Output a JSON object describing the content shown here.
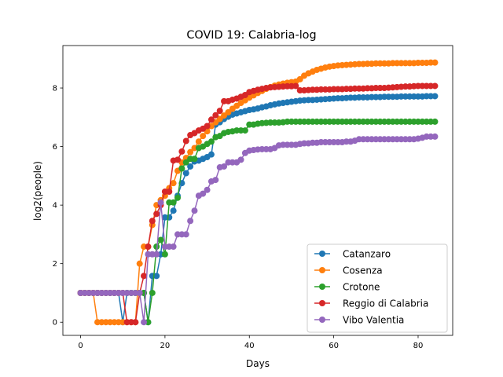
{
  "chart_data": {
    "type": "line",
    "title": "COVID 19: Calabria-log",
    "xlabel": "Days",
    "ylabel": "log2(people)",
    "xlim": [
      -4.2,
      88.2
    ],
    "ylim": [
      -0.45,
      9.45
    ],
    "xticks": [
      0,
      20,
      40,
      60,
      80
    ],
    "yticks": [
      0,
      2,
      4,
      6,
      8
    ],
    "grid": false,
    "legend_position": "lower-right",
    "series": [
      {
        "name": "Catanzaro",
        "color": "#1f77b4",
        "x": [
          0,
          1,
          2,
          3,
          4,
          5,
          6,
          7,
          8,
          9,
          10,
          11,
          12,
          13,
          14,
          15,
          16,
          17,
          18,
          19,
          20,
          21,
          22,
          23,
          24,
          25,
          26,
          27,
          28,
          29,
          30,
          31,
          32,
          33,
          34,
          35,
          36,
          37,
          38,
          39,
          40,
          41,
          42,
          43,
          44,
          45,
          46,
          47,
          48,
          49,
          50,
          51,
          52,
          53,
          54,
          55,
          56,
          57,
          58,
          59,
          60,
          61,
          62,
          63,
          64,
          65,
          66,
          67,
          68,
          69,
          70,
          71,
          72,
          73,
          74,
          75,
          76,
          77,
          78,
          79,
          80,
          81,
          82,
          83,
          84
        ],
        "y": [
          1,
          1,
          1,
          1,
          1,
          1,
          1,
          1,
          1,
          1,
          0,
          1,
          1,
          1,
          1,
          1,
          0,
          1.58,
          1.58,
          2.32,
          3.58,
          3.58,
          3.81,
          4.32,
          4.75,
          5.09,
          5.32,
          5.49,
          5.52,
          5.58,
          5.64,
          5.73,
          6.75,
          6.83,
          6.94,
          7.02,
          7.09,
          7.13,
          7.17,
          7.21,
          7.25,
          7.27,
          7.3,
          7.34,
          7.37,
          7.41,
          7.44,
          7.47,
          7.49,
          7.51,
          7.53,
          7.55,
          7.57,
          7.58,
          7.59,
          7.59,
          7.6,
          7.61,
          7.62,
          7.63,
          7.64,
          7.65,
          7.65,
          7.66,
          7.67,
          7.67,
          7.68,
          7.68,
          7.68,
          7.69,
          7.69,
          7.69,
          7.7,
          7.7,
          7.7,
          7.7,
          7.71,
          7.71,
          7.71,
          7.71,
          7.71,
          7.71,
          7.72,
          7.72,
          7.72
        ]
      },
      {
        "name": "Cosenza",
        "color": "#ff7f0e",
        "x": [
          0,
          1,
          2,
          3,
          4,
          5,
          6,
          7,
          8,
          9,
          10,
          11,
          12,
          13,
          14,
          15,
          16,
          17,
          18,
          19,
          20,
          21,
          22,
          23,
          24,
          25,
          26,
          27,
          28,
          29,
          30,
          31,
          32,
          33,
          34,
          35,
          36,
          37,
          38,
          39,
          40,
          41,
          42,
          43,
          44,
          45,
          46,
          47,
          48,
          49,
          50,
          51,
          52,
          53,
          54,
          55,
          56,
          57,
          58,
          59,
          60,
          61,
          62,
          63,
          64,
          65,
          66,
          67,
          68,
          69,
          70,
          71,
          72,
          73,
          74,
          75,
          76,
          77,
          78,
          79,
          80,
          81,
          82,
          83,
          84
        ],
        "y": [
          1,
          1,
          1,
          1,
          0,
          0,
          0,
          0,
          0,
          0,
          0,
          0,
          0,
          0,
          2,
          2.58,
          2.58,
          3.32,
          4,
          4.17,
          4.32,
          4.58,
          4.75,
          5.17,
          5.46,
          5.61,
          5.81,
          5.95,
          6.17,
          6.36,
          6.52,
          6.7,
          6.83,
          6.94,
          7.06,
          7.17,
          7.29,
          7.39,
          7.49,
          7.58,
          7.67,
          7.75,
          7.83,
          7.9,
          7.97,
          8.03,
          8.08,
          8.12,
          8.15,
          8.18,
          8.2,
          8.22,
          8.3,
          8.42,
          8.5,
          8.56,
          8.62,
          8.66,
          8.7,
          8.73,
          8.75,
          8.77,
          8.78,
          8.79,
          8.8,
          8.81,
          8.82,
          8.82,
          8.83,
          8.83,
          8.84,
          8.84,
          8.84,
          8.84,
          8.85,
          8.85,
          8.85,
          8.85,
          8.85,
          8.85,
          8.86,
          8.86,
          8.86,
          8.87,
          8.87
        ]
      },
      {
        "name": "Crotone",
        "color": "#2ca02c",
        "x": [
          0,
          1,
          2,
          3,
          4,
          5,
          6,
          7,
          8,
          9,
          10,
          11,
          12,
          13,
          14,
          15,
          16,
          17,
          18,
          19,
          20,
          21,
          22,
          23,
          24,
          25,
          26,
          27,
          28,
          29,
          30,
          31,
          32,
          33,
          34,
          35,
          36,
          37,
          38,
          39,
          40,
          41,
          42,
          43,
          44,
          45,
          46,
          47,
          48,
          49,
          50,
          51,
          52,
          53,
          54,
          55,
          56,
          57,
          58,
          59,
          60,
          61,
          62,
          63,
          64,
          65,
          66,
          67,
          68,
          69,
          70,
          71,
          72,
          73,
          74,
          75,
          76,
          77,
          78,
          79,
          80,
          81,
          82,
          83,
          84
        ],
        "y": [
          1,
          1,
          1,
          1,
          1,
          1,
          1,
          1,
          1,
          1,
          1,
          1,
          1,
          1,
          1,
          1,
          0,
          1,
          2.58,
          2.81,
          2.32,
          4.09,
          4.09,
          4.25,
          5.25,
          5.46,
          5.58,
          5.58,
          5.95,
          6,
          6.09,
          6.17,
          6.32,
          6.36,
          6.46,
          6.5,
          6.52,
          6.55,
          6.55,
          6.55,
          6.75,
          6.75,
          6.78,
          6.8,
          6.81,
          6.82,
          6.82,
          6.82,
          6.83,
          6.85,
          6.85,
          6.85,
          6.85,
          6.85,
          6.85,
          6.85,
          6.85,
          6.85,
          6.85,
          6.85,
          6.85,
          6.85,
          6.85,
          6.85,
          6.85,
          6.85,
          6.85,
          6.85,
          6.85,
          6.85,
          6.85,
          6.85,
          6.85,
          6.85,
          6.85,
          6.85,
          6.85,
          6.85,
          6.85,
          6.85,
          6.85,
          6.85,
          6.85,
          6.85,
          6.85
        ]
      },
      {
        "name": "Reggio di Calabria",
        "color": "#d62728",
        "x": [
          0,
          1,
          2,
          3,
          4,
          5,
          6,
          7,
          8,
          9,
          10,
          11,
          12,
          13,
          14,
          15,
          16,
          17,
          18,
          19,
          20,
          21,
          22,
          23,
          24,
          25,
          26,
          27,
          28,
          29,
          30,
          31,
          32,
          33,
          34,
          35,
          36,
          37,
          38,
          39,
          40,
          41,
          42,
          43,
          44,
          45,
          46,
          47,
          48,
          49,
          50,
          51,
          52,
          53,
          54,
          55,
          56,
          57,
          58,
          59,
          60,
          61,
          62,
          63,
          64,
          65,
          66,
          67,
          68,
          69,
          70,
          71,
          72,
          73,
          74,
          75,
          76,
          77,
          78,
          79,
          80,
          81,
          82,
          83,
          84
        ],
        "y": [
          1,
          1,
          1,
          1,
          1,
          1,
          1,
          1,
          1,
          1,
          1,
          0,
          0,
          0,
          1,
          1.58,
          2.58,
          3.46,
          3.7,
          4,
          4.46,
          4.46,
          5.52,
          5.55,
          5.83,
          6.19,
          6.39,
          6.46,
          6.55,
          6.61,
          6.7,
          6.92,
          7.07,
          7.22,
          7.55,
          7.55,
          7.6,
          7.64,
          7.7,
          7.76,
          7.86,
          7.9,
          7.94,
          7.97,
          8,
          8.02,
          8.03,
          8.04,
          8.05,
          8.06,
          8.06,
          8.07,
          7.92,
          7.92,
          7.93,
          7.94,
          7.94,
          7.95,
          7.95,
          7.95,
          7.96,
          7.96,
          7.96,
          7.97,
          7.97,
          7.98,
          7.98,
          7.98,
          7.99,
          7.99,
          8,
          8,
          8,
          8.01,
          8.02,
          8.03,
          8.04,
          8.05,
          8.05,
          8.06,
          8.07,
          8.07,
          8.07,
          8.07,
          8.07
        ]
      },
      {
        "name": "Vibo Valentia",
        "color": "#9467bd",
        "x": [
          0,
          1,
          2,
          3,
          4,
          5,
          6,
          7,
          8,
          9,
          10,
          11,
          12,
          13,
          14,
          15,
          16,
          17,
          18,
          19,
          20,
          21,
          22,
          23,
          24,
          25,
          26,
          27,
          28,
          29,
          30,
          31,
          32,
          33,
          34,
          35,
          36,
          37,
          38,
          39,
          40,
          41,
          42,
          43,
          44,
          45,
          46,
          47,
          48,
          49,
          50,
          51,
          52,
          53,
          54,
          55,
          56,
          57,
          58,
          59,
          60,
          61,
          62,
          63,
          64,
          65,
          66,
          67,
          68,
          69,
          70,
          71,
          72,
          73,
          74,
          75,
          76,
          77,
          78,
          79,
          80,
          81,
          82,
          83,
          84
        ],
        "y": [
          1,
          1,
          1,
          1,
          1,
          1,
          1,
          1,
          1,
          1,
          1,
          1,
          1,
          1,
          1,
          0,
          2.32,
          2.32,
          2.32,
          4.09,
          2.58,
          2.58,
          2.58,
          3,
          3,
          3,
          3.46,
          3.81,
          4.32,
          4.39,
          4.52,
          4.81,
          4.86,
          5.29,
          5.32,
          5.46,
          5.46,
          5.46,
          5.55,
          5.78,
          5.86,
          5.88,
          5.9,
          5.91,
          5.91,
          5.91,
          5.95,
          6.04,
          6.06,
          6.06,
          6.06,
          6.06,
          6.09,
          6.11,
          6.11,
          6.13,
          6.13,
          6.15,
          6.15,
          6.15,
          6.15,
          6.15,
          6.15,
          6.17,
          6.17,
          6.2,
          6.25,
          6.25,
          6.25,
          6.25,
          6.25,
          6.25,
          6.25,
          6.25,
          6.25,
          6.25,
          6.25,
          6.25,
          6.25,
          6.25,
          6.27,
          6.3,
          6.34,
          6.34,
          6.34
        ]
      }
    ]
  }
}
